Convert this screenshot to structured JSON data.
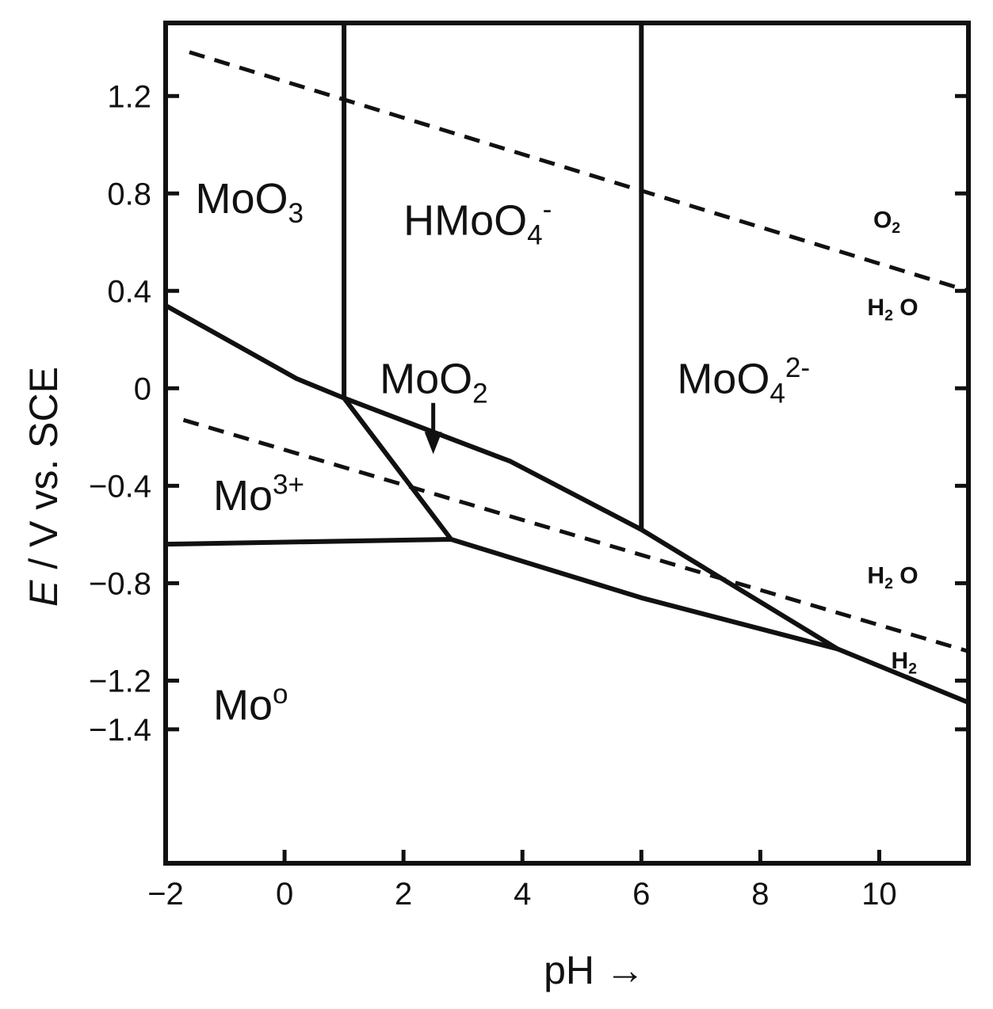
{
  "chart_data": {
    "type": "line",
    "title": "",
    "xlabel": "pH →",
    "ylabel_italic": "E",
    "ylabel_rest": " / V vs. SCE",
    "xlim": [
      -2,
      11.5
    ],
    "ylim": [
      -1.95,
      1.5
    ],
    "xticks": [
      {
        "v": -2,
        "label": "−2"
      },
      {
        "v": 0,
        "label": "0"
      },
      {
        "v": 2,
        "label": "2"
      },
      {
        "v": 4,
        "label": "4"
      },
      {
        "v": 6,
        "label": "6"
      },
      {
        "v": 8,
        "label": "8"
      },
      {
        "v": 10,
        "label": "10"
      }
    ],
    "yticks": [
      {
        "v": 1.2,
        "label": "1.2"
      },
      {
        "v": 0.8,
        "label": "0.8"
      },
      {
        "v": 0.4,
        "label": "0.4"
      },
      {
        "v": 0,
        "label": "0"
      },
      {
        "v": -0.4,
        "label": "−0.4"
      },
      {
        "v": -0.8,
        "label": "−0.8"
      },
      {
        "v": -1.2,
        "label": "−1.2"
      },
      {
        "v": -1.4,
        "label": "−1.4"
      }
    ],
    "grid": false,
    "solid_lines": [
      {
        "name": "MoO3/HMoO4- boundary",
        "points": [
          [
            1.0,
            1.5
          ],
          [
            1.0,
            -0.04
          ]
        ]
      },
      {
        "name": "HMoO4-/MoO4 2- boundary",
        "points": [
          [
            6.0,
            1.5
          ],
          [
            6.0,
            -0.58
          ]
        ]
      },
      {
        "name": "upper MoO2 boundary",
        "points": [
          [
            -2.0,
            0.34
          ],
          [
            0.2,
            0.04
          ],
          [
            1.0,
            -0.04
          ],
          [
            3.8,
            -0.3
          ],
          [
            6.0,
            -0.58
          ],
          [
            9.3,
            -1.07
          ]
        ]
      },
      {
        "name": "Mo3+/MoO2 boundary",
        "points": [
          [
            1.0,
            -0.04
          ],
          [
            2.8,
            -0.62
          ]
        ]
      },
      {
        "name": "Mo3+/Mo boundary",
        "points": [
          [
            -2.0,
            -0.64
          ],
          [
            2.8,
            -0.62
          ]
        ]
      },
      {
        "name": "lower MoO2/Mo boundary",
        "points": [
          [
            2.8,
            -0.62
          ],
          [
            6.0,
            -0.86
          ],
          [
            9.3,
            -1.07
          ],
          [
            11.5,
            -1.29
          ]
        ]
      }
    ],
    "dashed_lines": [
      {
        "name": "O2/H2O",
        "points": [
          [
            -1.6,
            1.38
          ],
          [
            11.5,
            0.4
          ]
        ]
      },
      {
        "name": "H2O/H2",
        "points": [
          [
            -1.7,
            -0.13
          ],
          [
            11.5,
            -1.08
          ]
        ]
      }
    ],
    "arrow": {
      "from": [
        2.5,
        -0.06
      ],
      "to": [
        2.5,
        -0.27
      ]
    },
    "region_labels": [
      {
        "id": "moo3",
        "main": "MoO",
        "sub": "3",
        "sup": "",
        "at": [
          -1.5,
          0.72
        ],
        "size": 54
      },
      {
        "id": "hmoo4",
        "main": "HMoO",
        "sub": "4",
        "sup": "-",
        "at": [
          2.0,
          0.63
        ],
        "size": 54
      },
      {
        "id": "moo2",
        "main": "MoO",
        "sub": "2",
        "sup": "",
        "at": [
          1.6,
          -0.02
        ],
        "size": 54
      },
      {
        "id": "moo4",
        "main": "MoO",
        "sub": "4",
        "sup": "2-",
        "at": [
          6.6,
          -0.02
        ],
        "size": 54
      },
      {
        "id": "mo3",
        "main": "Mo",
        "sub": "",
        "sup": "3+",
        "at": [
          -1.2,
          -0.5
        ],
        "size": 54
      },
      {
        "id": "mo0",
        "main": "Mo",
        "sub": "",
        "sup": "o",
        "at": [
          -1.2,
          -1.36
        ],
        "size": 54
      },
      {
        "id": "o2",
        "main": "O",
        "sub": "2",
        "sup": "",
        "at": [
          9.9,
          0.66
        ],
        "size": 30
      },
      {
        "id": "h2o-top",
        "main": "H",
        "sub": "2",
        "sup": "",
        "tail": " O",
        "at": [
          9.8,
          0.3
        ],
        "size": 30
      },
      {
        "id": "h2o-bottom",
        "main": "H",
        "sub": "2",
        "sup": "",
        "tail": " O",
        "at": [
          9.8,
          -0.8
        ],
        "size": 30
      },
      {
        "id": "h2",
        "main": "H",
        "sub": "2",
        "sup": "",
        "at": [
          10.2,
          -1.15
        ],
        "size": 30
      }
    ]
  }
}
